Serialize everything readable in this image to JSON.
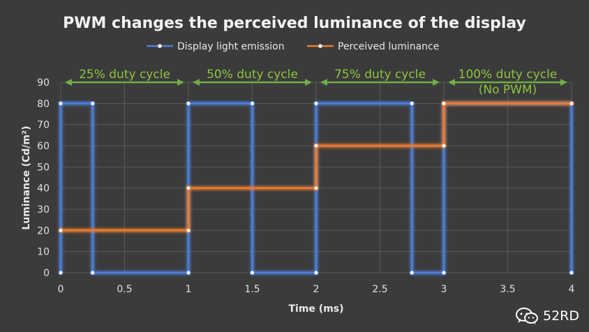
{
  "chart_data": {
    "type": "line",
    "title": "PWM changes the perceived luminance of the display",
    "xlabel": "Time (ms)",
    "ylabel": "Luminance (Cd/m²)",
    "xlim": [
      0,
      4
    ],
    "ylim": [
      0,
      90
    ],
    "x_ticks": [
      "0",
      "0.5",
      "1",
      "1.5",
      "2",
      "2.5",
      "3",
      "3.5",
      "4"
    ],
    "y_ticks": [
      "0",
      "10",
      "20",
      "30",
      "40",
      "50",
      "60",
      "70",
      "80",
      "90"
    ],
    "x_tick_values": [
      0,
      0.5,
      1,
      1.5,
      2,
      2.5,
      3,
      3.5,
      4
    ],
    "y_tick_values": [
      0,
      10,
      20,
      30,
      40,
      50,
      60,
      70,
      80,
      90
    ],
    "grid": true,
    "legend_position": "top",
    "series": [
      {
        "name": "Display light emission",
        "color": "#4f7fd8",
        "points": [
          [
            0,
            0
          ],
          [
            0,
            80
          ],
          [
            0.25,
            80
          ],
          [
            0.25,
            0
          ],
          [
            1,
            0
          ],
          [
            1,
            80
          ],
          [
            1.5,
            80
          ],
          [
            1.5,
            0
          ],
          [
            2,
            0
          ],
          [
            2,
            80
          ],
          [
            2.75,
            80
          ],
          [
            2.75,
            0
          ],
          [
            3,
            0
          ],
          [
            3,
            80
          ],
          [
            4,
            80
          ],
          [
            4,
            0
          ]
        ]
      },
      {
        "name": "Perceived luminance",
        "color": "#ed7d31",
        "points": [
          [
            0,
            20
          ],
          [
            1,
            20
          ],
          [
            1,
            40
          ],
          [
            2,
            40
          ],
          [
            2,
            60
          ],
          [
            3,
            60
          ],
          [
            3,
            80
          ],
          [
            4,
            80
          ]
        ]
      }
    ],
    "annotations": [
      {
        "lines": [
          "25% duty cycle"
        ],
        "from": 0,
        "to": 1
      },
      {
        "lines": [
          "50% duty cycle"
        ],
        "from": 1,
        "to": 2
      },
      {
        "lines": [
          "75% duty cycle"
        ],
        "from": 2,
        "to": 3
      },
      {
        "lines": [
          "100% duty cycle",
          "(No PWM)"
        ],
        "from": 3,
        "to": 4
      }
    ],
    "annotation_color": "#70ad47"
  },
  "watermark": {
    "text": "52RD",
    "icon": "wechat-icon"
  }
}
